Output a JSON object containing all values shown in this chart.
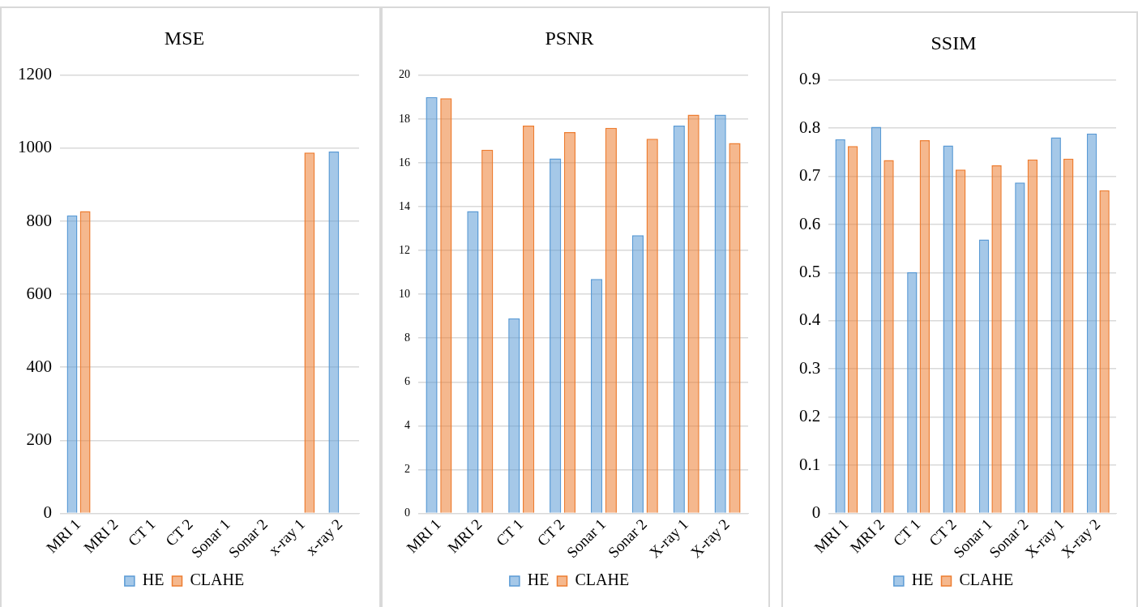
{
  "chart_data": [
    {
      "type": "bar",
      "title": "MSE",
      "categories": [
        "MRI 1",
        "MRI 2",
        "CT 1",
        "CT 2",
        "Sonar 1",
        "Sonar 2",
        "x-ray 1",
        "x-ray 2"
      ],
      "series": [
        {
          "name": "HE",
          "color": "#5b9bd5",
          "values": [
            816,
            0,
            0,
            0,
            0,
            0,
            0,
            991
          ]
        },
        {
          "name": "CLAHE",
          "color": "#ed7d31",
          "values": [
            828,
            0,
            0,
            0,
            0,
            0,
            988,
            0
          ]
        }
      ],
      "ylim": [
        0,
        1200
      ],
      "yticks": [
        0,
        200,
        400,
        600,
        800,
        1000,
        1200
      ],
      "grid": "y",
      "legend": "bottom"
    },
    {
      "type": "bar",
      "title": "PSNR",
      "categories": [
        "MRI 1",
        "MRI 2",
        "CT 1",
        "CT 2",
        "Sonar 1",
        "Sonar 2",
        "X-ray 1",
        "X-ray 2"
      ],
      "series": [
        {
          "name": "HE",
          "color": "#5b9bd5",
          "values": [
            19.0,
            13.8,
            8.9,
            16.2,
            10.7,
            12.7,
            17.7,
            18.2
          ]
        },
        {
          "name": "CLAHE",
          "color": "#ed7d31",
          "values": [
            18.95,
            16.6,
            17.7,
            17.4,
            17.6,
            17.1,
            18.2,
            16.9
          ]
        }
      ],
      "ylim": [
        0,
        20
      ],
      "yticks": [
        0,
        2,
        4,
        6,
        8,
        10,
        12,
        14,
        16,
        18,
        20
      ],
      "grid": "y",
      "legend": "bottom"
    },
    {
      "type": "bar",
      "title": "SSIM",
      "categories": [
        "MRI 1",
        "MRI 2",
        "CT 1",
        "CT 2",
        "Sonar 1",
        "Sonar 2",
        "X-ray 1",
        "X-ray 2"
      ],
      "series": [
        {
          "name": "HE",
          "color": "#5b9bd5",
          "values": [
            0.777,
            0.803,
            0.501,
            0.764,
            0.569,
            0.687,
            0.781,
            0.789
          ]
        },
        {
          "name": "CLAHE",
          "color": "#ed7d31",
          "values": [
            0.763,
            0.734,
            0.775,
            0.714,
            0.723,
            0.735,
            0.737,
            0.671
          ]
        }
      ],
      "ylim": [
        0,
        0.9
      ],
      "yticks": [
        0,
        0.1,
        0.2,
        0.3,
        0.4,
        0.5,
        0.6,
        0.7,
        0.8,
        0.9
      ],
      "grid": "y",
      "legend": "bottom"
    }
  ]
}
